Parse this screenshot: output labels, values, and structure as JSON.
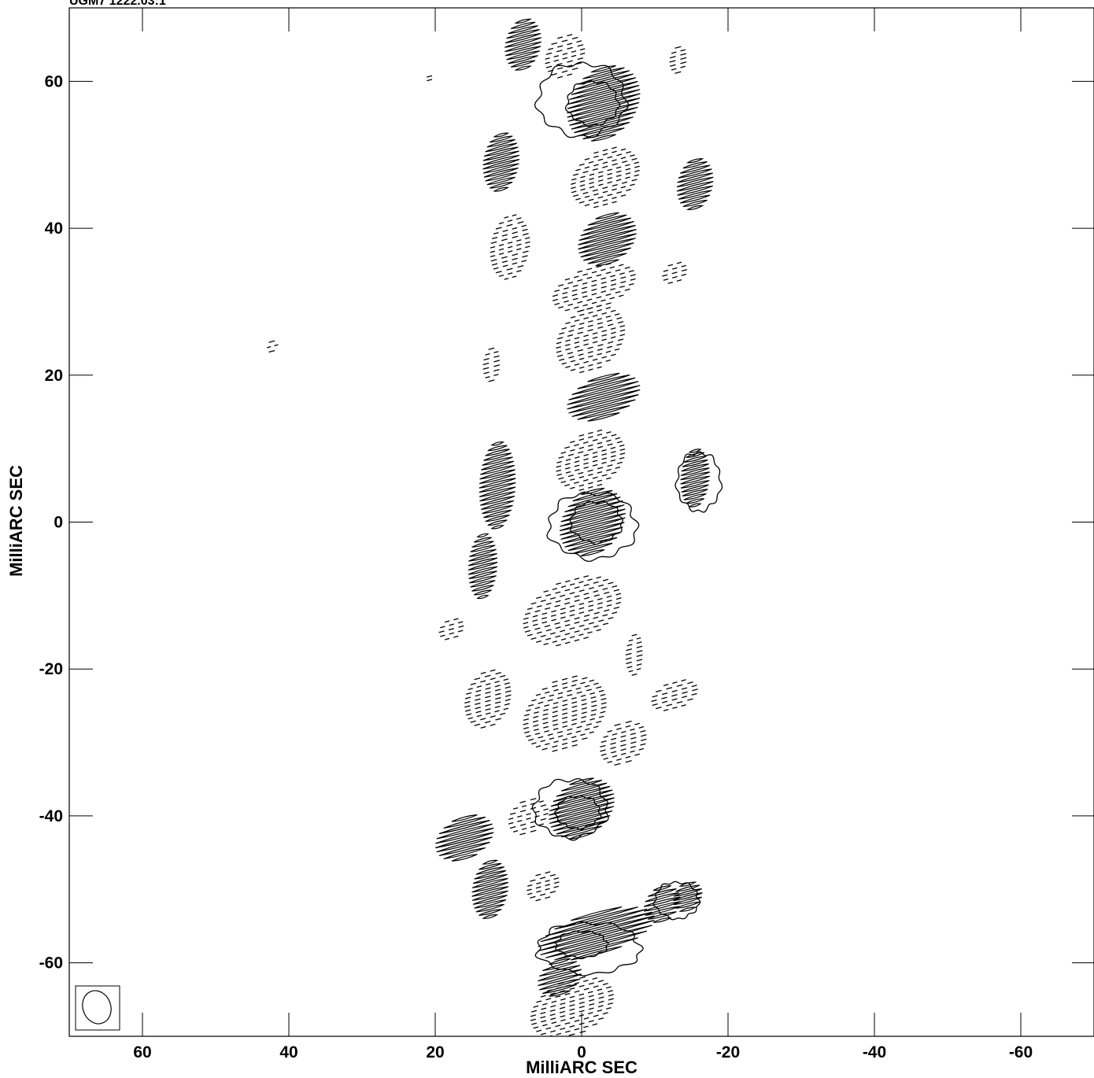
{
  "header": {
    "text": "UGM7 1222.03:1"
  },
  "chart_data": {
    "type": "contour",
    "title": "",
    "xlabel": "MilliARC SEC",
    "ylabel": "MilliARC SEC",
    "xlim": [
      70,
      -70
    ],
    "ylim": [
      -70,
      70
    ],
    "x_ticks": [
      60,
      40,
      20,
      0,
      -20,
      -40,
      -60
    ],
    "y_ticks": [
      60,
      40,
      20,
      0,
      -20,
      -40,
      -60
    ],
    "beam": {
      "major_mas": 4.6,
      "minor_mas": 3.8,
      "position": "bottom-left"
    },
    "positive_contours": [
      {
        "name": "core-top",
        "cx": 0.0,
        "cy": 57.5,
        "rx": 6.0,
        "ry": 5.0
      },
      {
        "name": "core-top-inner",
        "cx": -1.5,
        "cy": 57.0,
        "rx": 3.5,
        "ry": 3.0
      },
      {
        "name": "core-center",
        "cx": -1.5,
        "cy": -0.5,
        "rx": 6.0,
        "ry": 4.5
      },
      {
        "name": "core-center-inner",
        "cx": -2.0,
        "cy": 0.0,
        "rx": 3.5,
        "ry": 2.8
      },
      {
        "name": "knot-lower",
        "cx": 1.5,
        "cy": -39.0,
        "rx": 5.0,
        "ry": 4.0
      },
      {
        "name": "knot-lower-inner",
        "cx": 0.5,
        "cy": -39.5,
        "rx": 3.0,
        "ry": 2.2
      },
      {
        "name": "knot-right",
        "cx": -16.0,
        "cy": 5.5,
        "rx": 3.0,
        "ry": 4.0
      },
      {
        "name": "knot-bottom-right",
        "cx": -13.0,
        "cy": -51.5,
        "rx": 3.0,
        "ry": 2.5
      },
      {
        "name": "knot-bottom",
        "cx": -1.0,
        "cy": -58.0,
        "rx": 7.0,
        "ry": 3.5
      },
      {
        "name": "knot-bottom-inner",
        "cx": 0.0,
        "cy": -57.5,
        "rx": 3.5,
        "ry": 1.8
      }
    ],
    "stripe_regions": [
      {
        "name": "stripe-a",
        "cx": 8.0,
        "cy": 65.0,
        "w": 5.0,
        "h": 7.0,
        "style": "solid"
      },
      {
        "name": "stripe-b",
        "cx": -3.0,
        "cy": 57.0,
        "w": 10.0,
        "h": 10.0,
        "style": "solid"
      },
      {
        "name": "stripe-c",
        "cx": 11.0,
        "cy": 49.0,
        "w": 5.0,
        "h": 8.0,
        "style": "solid"
      },
      {
        "name": "stripe-d",
        "cx": -15.5,
        "cy": 46.0,
        "w": 5.0,
        "h": 7.0,
        "style": "solid"
      },
      {
        "name": "stripe-e",
        "cx": -3.5,
        "cy": 38.5,
        "w": 8.0,
        "h": 7.0,
        "style": "solid"
      },
      {
        "name": "stripe-f",
        "cx": -3.0,
        "cy": 17.0,
        "w": 10.0,
        "h": 6.0,
        "style": "solid"
      },
      {
        "name": "stripe-g",
        "cx": 11.5,
        "cy": 5.0,
        "w": 5.0,
        "h": 12.0,
        "style": "solid"
      },
      {
        "name": "stripe-h",
        "cx": -1.5,
        "cy": 0.0,
        "w": 9.0,
        "h": 9.0,
        "style": "solid"
      },
      {
        "name": "stripe-i",
        "cx": 13.5,
        "cy": -6.0,
        "w": 4.0,
        "h": 9.0,
        "style": "solid"
      },
      {
        "name": "stripe-j",
        "cx": 0.0,
        "cy": -39.0,
        "w": 9.0,
        "h": 8.0,
        "style": "solid"
      },
      {
        "name": "stripe-k",
        "cx": 16.0,
        "cy": -43.0,
        "w": 8.0,
        "h": 6.0,
        "style": "solid"
      },
      {
        "name": "stripe-l",
        "cx": 12.5,
        "cy": -50.0,
        "w": 5.0,
        "h": 8.0,
        "style": "solid"
      },
      {
        "name": "stripe-m",
        "cx": -2.0,
        "cy": -56.0,
        "w": 16.0,
        "h": 6.0,
        "style": "solid"
      },
      {
        "name": "stripe-n",
        "cx": -11.0,
        "cy": -52.0,
        "w": 5.0,
        "h": 5.0,
        "style": "solid"
      },
      {
        "name": "stripe-o",
        "cx": 3.0,
        "cy": -62.0,
        "w": 6.0,
        "h": 5.0,
        "style": "solid"
      },
      {
        "name": "stripe-p",
        "cx": -15.5,
        "cy": 6.0,
        "w": 4.0,
        "h": 8.0,
        "style": "solid"
      },
      {
        "name": "stripe-q",
        "cx": -14.5,
        "cy": -51.0,
        "w": 4.0,
        "h": 4.0,
        "style": "solid"
      },
      {
        "name": "dash-a",
        "cx": 2.0,
        "cy": 63.5,
        "w": 6.0,
        "h": 6.0,
        "style": "dashed"
      },
      {
        "name": "dash-b",
        "cx": -3.5,
        "cy": 47.0,
        "w": 10.0,
        "h": 8.0,
        "style": "dashed"
      },
      {
        "name": "dash-c",
        "cx": 9.5,
        "cy": 37.5,
        "w": 6.0,
        "h": 9.0,
        "style": "dashed"
      },
      {
        "name": "dash-d",
        "cx": -2.0,
        "cy": 32.0,
        "w": 12.0,
        "h": 6.0,
        "style": "dashed"
      },
      {
        "name": "dash-e",
        "cx": -1.5,
        "cy": 25.0,
        "w": 10.0,
        "h": 9.0,
        "style": "dashed"
      },
      {
        "name": "dash-f",
        "cx": -13.0,
        "cy": 34.0,
        "w": 4.0,
        "h": 3.0,
        "style": "dashed"
      },
      {
        "name": "dash-g",
        "cx": 12.0,
        "cy": 21.5,
        "w": 3.0,
        "h": 5.0,
        "style": "dashed"
      },
      {
        "name": "dash-h",
        "cx": -1.5,
        "cy": 8.5,
        "w": 10.0,
        "h": 8.0,
        "style": "dashed"
      },
      {
        "name": "dash-i",
        "cx": 1.0,
        "cy": -12.0,
        "w": 14.0,
        "h": 9.0,
        "style": "dashed"
      },
      {
        "name": "dash-j",
        "cx": 12.5,
        "cy": -24.0,
        "w": 7.0,
        "h": 8.0,
        "style": "dashed"
      },
      {
        "name": "dash-k",
        "cx": 2.0,
        "cy": -26.0,
        "w": 12.0,
        "h": 10.0,
        "style": "dashed"
      },
      {
        "name": "dash-l",
        "cx": -6.0,
        "cy": -30.0,
        "w": 7.0,
        "h": 6.0,
        "style": "dashed"
      },
      {
        "name": "dash-m",
        "cx": -7.5,
        "cy": -18.0,
        "w": 3.0,
        "h": 6.0,
        "style": "dashed"
      },
      {
        "name": "dash-n",
        "cx": -13.0,
        "cy": -23.5,
        "w": 7.0,
        "h": 4.0,
        "style": "dashed"
      },
      {
        "name": "dash-o",
        "cx": 17.5,
        "cy": -14.5,
        "w": 4.0,
        "h": 3.0,
        "style": "dashed"
      },
      {
        "name": "dash-p",
        "cx": 5.0,
        "cy": -49.5,
        "w": 5.0,
        "h": 4.0,
        "style": "dashed"
      },
      {
        "name": "dash-q",
        "cx": 1.0,
        "cy": -66.0,
        "w": 12.0,
        "h": 8.0,
        "style": "dashed"
      },
      {
        "name": "dash-r",
        "cx": 7.0,
        "cy": -40.0,
        "w": 6.0,
        "h": 5.0,
        "style": "dashed"
      },
      {
        "name": "dash-s",
        "cx": -13.5,
        "cy": 63.0,
        "w": 3.0,
        "h": 4.0,
        "style": "dashed"
      },
      {
        "name": "dash-t",
        "cx": 20.5,
        "cy": 60.5,
        "w": 1.5,
        "h": 1.0,
        "style": "dashed"
      },
      {
        "name": "dash-u",
        "cx": 42.0,
        "cy": 24.0,
        "w": 2.0,
        "h": 2.0,
        "style": "dashed"
      }
    ]
  }
}
